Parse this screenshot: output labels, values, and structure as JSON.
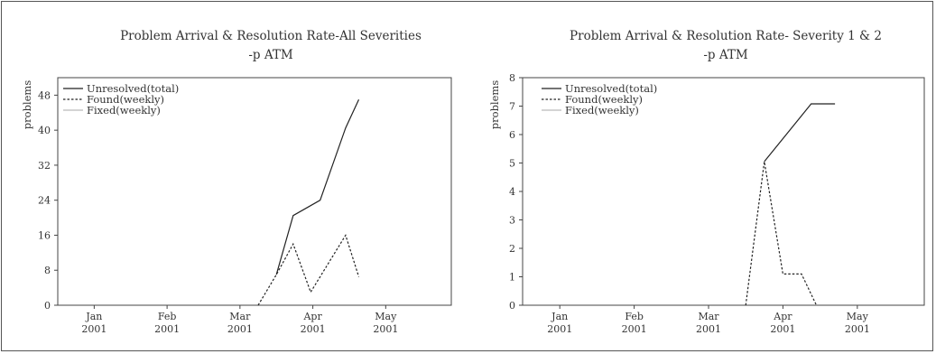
{
  "chart_data": [
    {
      "type": "line",
      "title": "Problem Arrival & Resolution Rate-All Severities",
      "subtitle": "-p ATM",
      "ylabel": "problems",
      "xlabel": "",
      "ylim": [
        0,
        52
      ],
      "yticks": [
        0,
        8,
        16,
        24,
        32,
        40,
        48
      ],
      "xlim": [
        0,
        5.4
      ],
      "xticks": [
        {
          "month": "Jan",
          "year": "2001"
        },
        {
          "month": "Feb",
          "year": "2001"
        },
        {
          "month": "Mar",
          "year": "2001"
        },
        {
          "month": "Apr",
          "year": "2001"
        },
        {
          "month": "May",
          "year": "2001"
        }
      ],
      "grid": false,
      "legend_position": "top-left",
      "series": [
        {
          "name": "Unresolved(total)",
          "style": "solid",
          "color": "#222222",
          "x": [
            3.0,
            3.23,
            3.6,
            3.95,
            4.13
          ],
          "y": [
            7,
            20.5,
            24,
            40.5,
            47
          ]
        },
        {
          "name": "Found(weekly)",
          "style": "dashed",
          "color": "#222222",
          "x": [
            2.75,
            3.0,
            3.23,
            3.47,
            3.95,
            4.13
          ],
          "y": [
            0,
            7,
            14,
            3,
            16,
            6.5
          ]
        },
        {
          "name": "Fixed(weekly)",
          "style": "solid",
          "color": "#bbbbbb",
          "x": [],
          "y": []
        }
      ]
    },
    {
      "type": "line",
      "title": "Problem Arrival & Resolution Rate- Severity 1 & 2",
      "subtitle": "-p ATM",
      "ylabel": "problems",
      "xlabel": "",
      "ylim": [
        0,
        8
      ],
      "yticks": [
        0,
        1,
        2,
        3,
        4,
        5,
        6,
        7,
        8
      ],
      "xlim": [
        0,
        5.4
      ],
      "xticks": [
        {
          "month": "Jan",
          "year": "2001"
        },
        {
          "month": "Feb",
          "year": "2001"
        },
        {
          "month": "Mar",
          "year": "2001"
        },
        {
          "month": "Apr",
          "year": "2001"
        },
        {
          "month": "May",
          "year": "2001"
        }
      ],
      "grid": false,
      "legend_position": "top-left",
      "series": [
        {
          "name": "Unresolved(total)",
          "style": "solid",
          "color": "#222222",
          "x": [
            3.25,
            3.88,
            4.2
          ],
          "y": [
            5.05,
            7.08,
            7.08
          ]
        },
        {
          "name": "Found(weekly)",
          "style": "dashed",
          "color": "#222222",
          "x": [
            3.0,
            3.25,
            3.5,
            3.75,
            3.95
          ],
          "y": [
            0,
            5.05,
            1.1,
            1.1,
            0
          ]
        },
        {
          "name": "Fixed(weekly)",
          "style": "solid",
          "color": "#bbbbbb",
          "x": [],
          "y": []
        }
      ]
    }
  ]
}
